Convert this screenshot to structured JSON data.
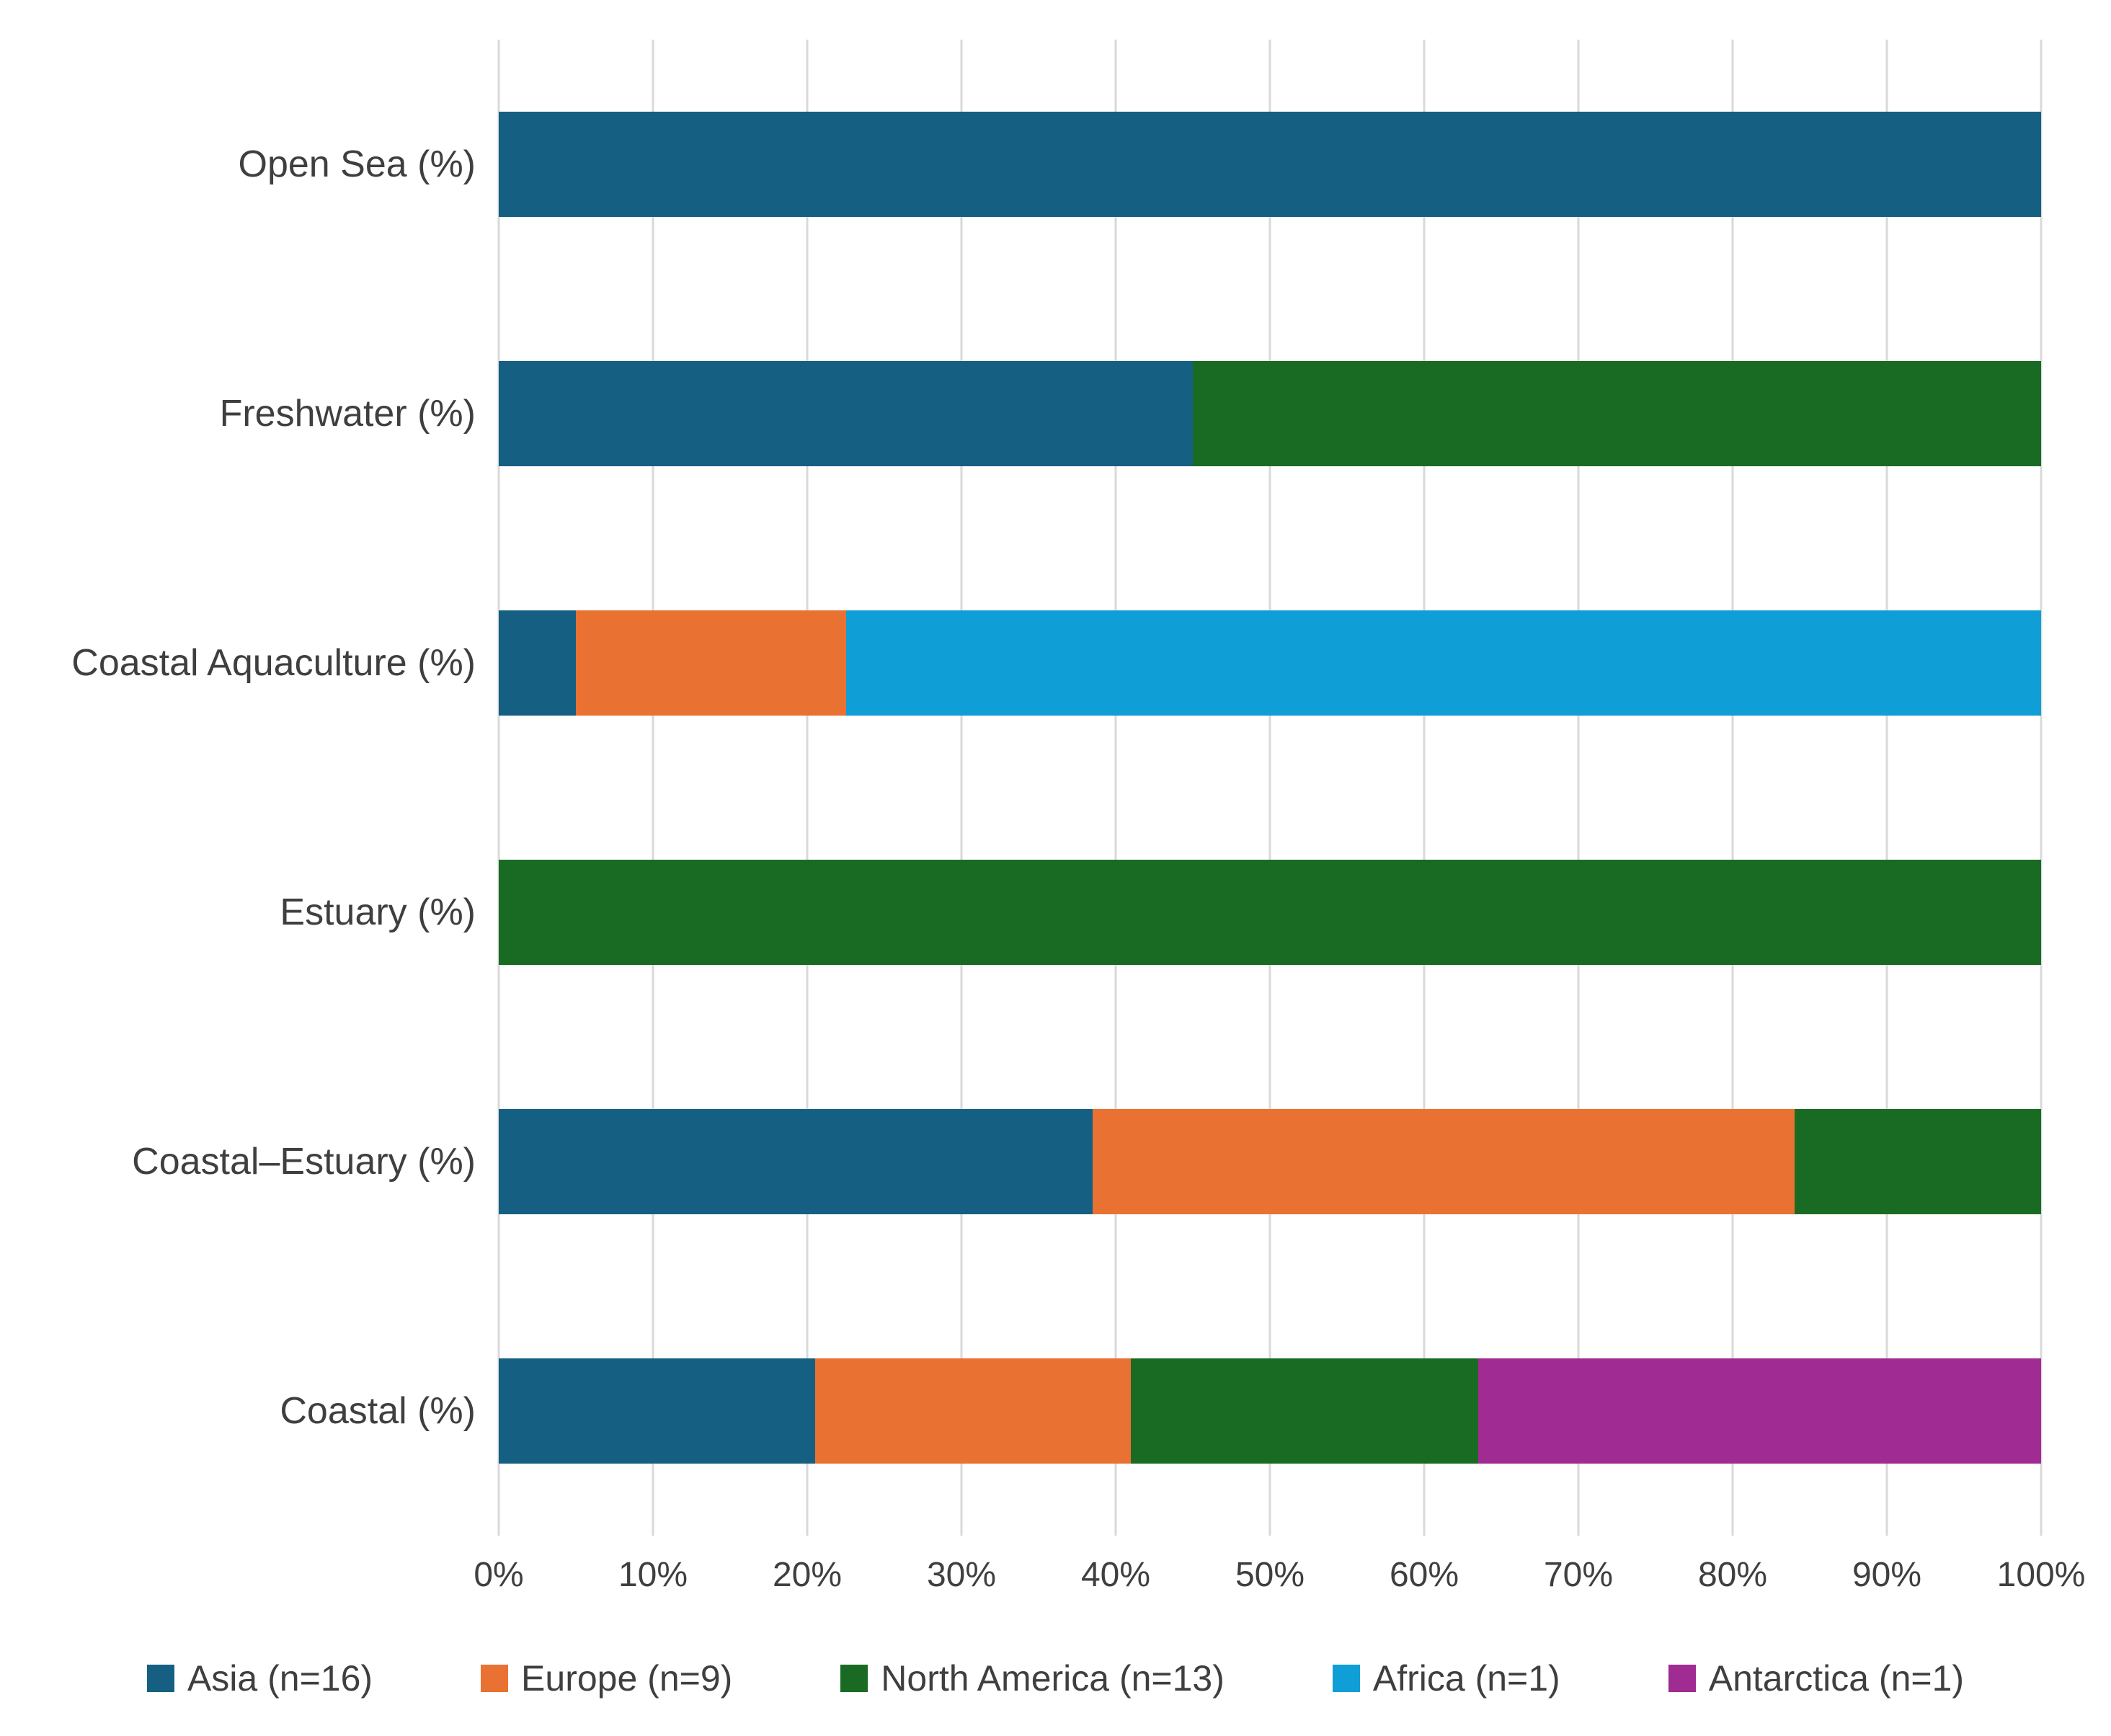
{
  "chart_data": {
    "type": "bar",
    "orientation": "horizontal",
    "stacked": true,
    "title": "",
    "xlabel": "",
    "ylabel": "",
    "grid": true,
    "legend_position": "bottom",
    "categories": [
      "Open Sea (%)",
      "Freshwater (%)",
      "Coastal Aquaculture (%)",
      "Estuary (%)",
      "Coastal–Estuary (%)",
      "Coastal (%)"
    ],
    "series": [
      {
        "name": "Asia (n=16)",
        "color": "#156082",
        "values": [
          100,
          45,
          5,
          0,
          38.5,
          20.5
        ]
      },
      {
        "name": "Europe (n=9)",
        "color": "#E97132",
        "values": [
          0,
          0,
          17.5,
          0,
          45.5,
          20.5
        ]
      },
      {
        "name": "North America (n=13)",
        "color": "#196B24",
        "values": [
          0,
          55,
          0,
          100,
          16,
          22.5
        ]
      },
      {
        "name": "Africa (n=1)",
        "color": "#0F9ED5",
        "values": [
          0,
          0,
          77.5,
          0,
          0,
          0
        ]
      },
      {
        "name": "Antarctica (n=1)",
        "color": "#A02B93",
        "values": [
          0,
          0,
          0,
          0,
          0,
          36.5
        ]
      }
    ],
    "x_axis": {
      "min": 0,
      "max": 100,
      "tick_step": 10,
      "ticks": [
        "0%",
        "10%",
        "20%",
        "30%",
        "40%",
        "50%",
        "60%",
        "70%",
        "80%",
        "90%",
        "100%"
      ]
    },
    "styles": {
      "grid_color": "#D9D9D9",
      "text_color": "#3F3F3F",
      "background": "#FFFFFF"
    }
  }
}
